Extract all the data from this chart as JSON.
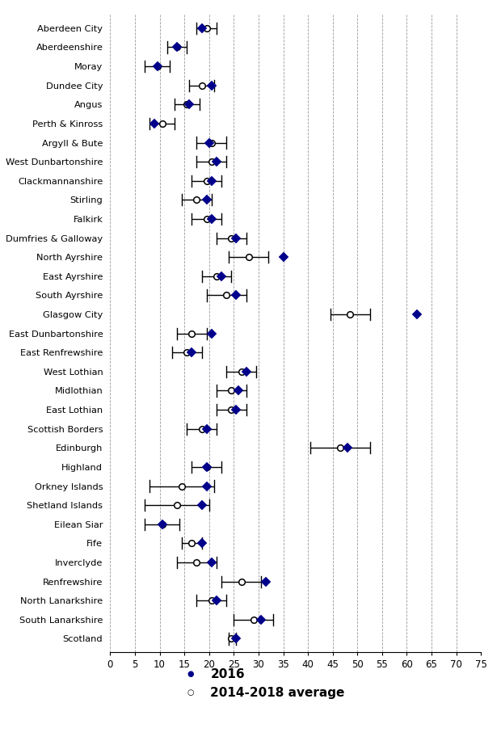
{
  "las": [
    "Aberdeen City",
    "Aberdeenshire",
    "Moray",
    "Dundee City",
    "Angus",
    "Perth & Kinross",
    "Argyll & Bute",
    "West Dunbartonshire",
    "Clackmannanshire",
    "Stirling",
    "Falkirk",
    "Dumfries & Galloway",
    "North Ayrshire",
    "East Ayrshire",
    "South Ayrshire",
    "Glasgow City",
    "East Dunbartonshire",
    "East Renfrewshire",
    "West Lothian",
    "Midlothian",
    "East Lothian",
    "Scottish Borders",
    "Edinburgh",
    "Highland",
    "Orkney Islands",
    "Shetland Islands",
    "Eilean Siar",
    "Fife",
    "Inverclyde",
    "Renfrewshire",
    "North Lanarkshire",
    "South Lanarkshire",
    "Scotland"
  ],
  "val2016": [
    18.5,
    13.5,
    9.5,
    20.5,
    16.0,
    9.0,
    20.0,
    21.5,
    20.5,
    19.5,
    20.5,
    25.5,
    35.0,
    22.5,
    25.5,
    62.0,
    20.5,
    16.5,
    27.5,
    26.0,
    25.5,
    19.5,
    48.0,
    19.5,
    19.5,
    18.5,
    10.5,
    18.5,
    20.5,
    31.5,
    21.5,
    30.5,
    25.5
  ],
  "avg_val": [
    19.5,
    13.5,
    9.5,
    18.5,
    15.5,
    10.5,
    20.5,
    20.5,
    19.5,
    17.5,
    19.5,
    24.5,
    28.0,
    21.5,
    23.5,
    48.5,
    16.5,
    15.5,
    26.5,
    24.5,
    24.5,
    18.5,
    46.5,
    19.5,
    14.5,
    13.5,
    10.5,
    16.5,
    17.5,
    26.5,
    20.5,
    29.0,
    24.5
  ],
  "avg_lo": [
    17.5,
    11.5,
    7.0,
    16.0,
    13.0,
    8.0,
    17.5,
    17.5,
    16.5,
    14.5,
    16.5,
    21.5,
    24.0,
    18.5,
    19.5,
    44.5,
    13.5,
    12.5,
    23.5,
    21.5,
    21.5,
    15.5,
    40.5,
    16.5,
    8.0,
    7.0,
    7.0,
    14.5,
    13.5,
    22.5,
    17.5,
    25.0,
    24.0
  ],
  "avg_hi": [
    21.5,
    15.5,
    12.0,
    21.0,
    18.0,
    13.0,
    23.5,
    23.5,
    22.5,
    20.5,
    22.5,
    27.5,
    32.0,
    24.5,
    27.5,
    52.5,
    19.5,
    18.5,
    29.5,
    27.5,
    27.5,
    21.5,
    52.5,
    22.5,
    21.0,
    20.0,
    14.0,
    18.5,
    21.5,
    30.5,
    23.5,
    33.0,
    25.5
  ],
  "dot2016_color": "#00008B",
  "xmin": 0,
  "xmax": 75,
  "xticks": [
    0,
    5,
    10,
    15,
    20,
    25,
    30,
    35,
    40,
    45,
    50,
    55,
    60,
    65,
    70,
    75
  ],
  "background_color": "#ffffff"
}
